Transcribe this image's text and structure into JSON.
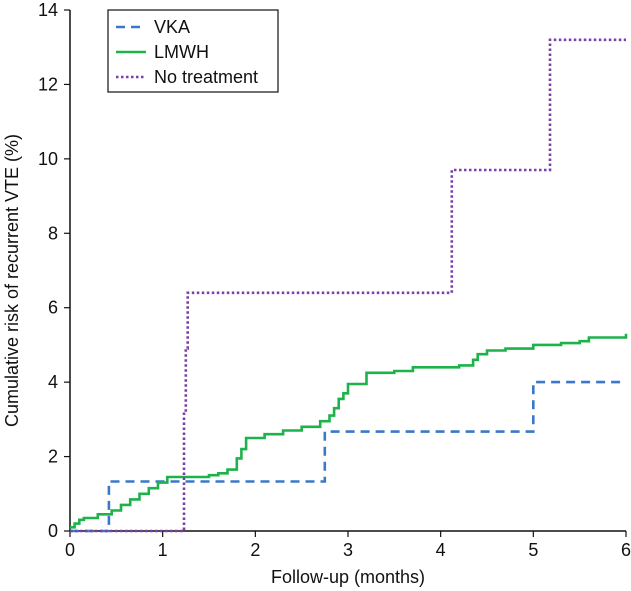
{
  "chart_data": {
    "type": "line",
    "title": "",
    "xlabel": "Follow-up (months)",
    "ylabel": "Cumulative risk of recurrent VTE (%)",
    "xlim": [
      0,
      6
    ],
    "ylim": [
      0,
      14
    ],
    "x_ticks": [
      "0",
      "1",
      "2",
      "3",
      "4",
      "5",
      "6"
    ],
    "y_ticks": [
      "0",
      "2",
      "4",
      "6",
      "8",
      "10",
      "12",
      "14"
    ],
    "grid": false,
    "legend_position": "top-left",
    "step": true,
    "series": [
      {
        "name": "VKA",
        "color": "#3a78c9",
        "style": "dashed",
        "x": [
          0,
          0.42,
          0.42,
          2.75,
          2.75,
          5.0,
          5.0,
          6.0
        ],
        "y": [
          0,
          0,
          1.33,
          1.33,
          2.67,
          2.67,
          4.0,
          4.0
        ]
      },
      {
        "name": "LMWH",
        "color": "#1db34a",
        "style": "solid",
        "x": [
          0,
          0.05,
          0.1,
          0.15,
          0.3,
          0.45,
          0.55,
          0.65,
          0.75,
          0.85,
          0.95,
          1.05,
          1.5,
          1.6,
          1.7,
          1.8,
          1.85,
          1.9,
          2.1,
          2.3,
          2.5,
          2.7,
          2.8,
          2.85,
          2.9,
          2.95,
          3.0,
          3.2,
          3.5,
          3.7,
          4.0,
          4.2,
          4.35,
          4.4,
          4.5,
          4.7,
          5.0,
          5.3,
          5.5,
          5.6,
          6.0
        ],
        "y": [
          0.1,
          0.2,
          0.3,
          0.35,
          0.45,
          0.55,
          0.7,
          0.85,
          1.0,
          1.15,
          1.3,
          1.45,
          1.5,
          1.55,
          1.65,
          1.95,
          2.2,
          2.5,
          2.6,
          2.7,
          2.8,
          2.95,
          3.1,
          3.3,
          3.55,
          3.7,
          3.95,
          4.25,
          4.3,
          4.4,
          4.4,
          4.45,
          4.6,
          4.75,
          4.85,
          4.9,
          5.0,
          5.05,
          5.1,
          5.2,
          5.3
        ]
      },
      {
        "name": "No treatment",
        "color": "#7b3fa8",
        "style": "dotted",
        "x": [
          0,
          1.23,
          1.23,
          1.25,
          1.25,
          1.27,
          1.27,
          4.12,
          4.12,
          5.18,
          5.18,
          6.0
        ],
        "y": [
          0,
          0,
          3.2,
          3.2,
          4.9,
          4.9,
          6.4,
          6.4,
          9.7,
          9.7,
          13.2,
          13.2
        ]
      }
    ]
  }
}
